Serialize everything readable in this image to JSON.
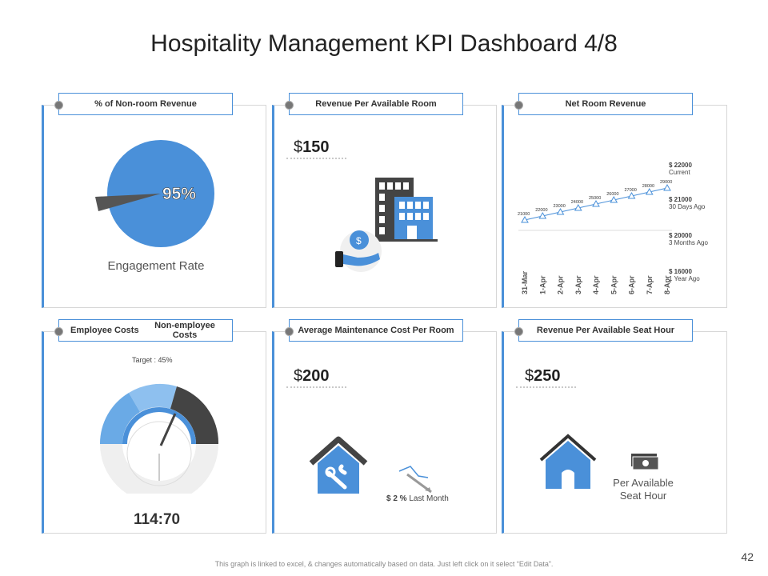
{
  "title": "Hospitality Management KPI Dashboard 4/8",
  "panels": {
    "nonroom": {
      "header": "% of Non-room Revenue",
      "percent": "95%",
      "label": "Engagement Rate"
    },
    "revpar": {
      "header": "Revenue Per Available Room",
      "currency": "$",
      "value": "150",
      "coin": "$"
    },
    "netroom": {
      "header": "Net Room Revenue",
      "dates": [
        "31-Mar",
        "1-Apr",
        "2-Apr",
        "3-Apr",
        "4-Apr",
        "5-Apr",
        "6-Apr",
        "7-Apr",
        "8-Apr"
      ],
      "values": [
        21000,
        22000,
        23000,
        24000,
        25000,
        26000,
        27000,
        28000,
        29000
      ],
      "value_labels": [
        "21000",
        "22000",
        "23000",
        "24000",
        "25000",
        "26000",
        "27000",
        "28000",
        "29000"
      ],
      "legend": [
        {
          "amount": "$ 22000",
          "desc": "Current"
        },
        {
          "amount": "$ 21000",
          "desc": "30 Days Ago"
        },
        {
          "amount": "$ 20000",
          "desc": "3 Months Ago"
        },
        {
          "amount": "$ 16000",
          "desc": "1 Year Ago"
        }
      ]
    },
    "employee": {
      "header_left": "Employee Costs",
      "header_right": "Non-employee Costs",
      "target": "Target : 45%",
      "ratio": "114:70"
    },
    "maintenance": {
      "header": "Average Maintenance Cost Per Room",
      "currency": "$",
      "value": "200",
      "change": "$ 2 %",
      "change_desc": "Last Month"
    },
    "seathour": {
      "header": "Revenue Per Available Seat Hour",
      "currency": "$",
      "value": "250",
      "label_line1": "Per Available",
      "label_line2": "Seat Hour"
    }
  },
  "footer": "This graph is linked to excel, & changes automatically based on data. Just left click on it select “Edit Data”.",
  "page_number": "42",
  "colors": {
    "accent": "#4a90d9",
    "dark": "#444444",
    "light_gray": "#eeeeee"
  }
}
